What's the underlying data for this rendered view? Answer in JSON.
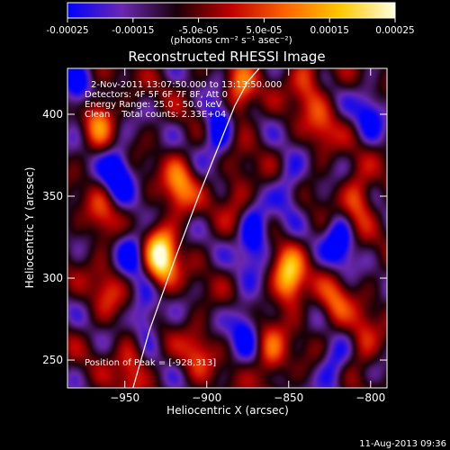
{
  "colors": {
    "background": "#000000",
    "foreground": "#ffffff",
    "colormap": [
      "#0000ff",
      "#6a28b0",
      "#1a0008",
      "#c00000",
      "#ff6400",
      "#ffc800",
      "#ffffe0"
    ]
  },
  "colorbar": {
    "tick_labels": [
      "-0.00025",
      "-0.00015",
      "-5.0e-05",
      "5.0e-05",
      "0.00015",
      "0.00025"
    ],
    "tick_values": [
      -0.00025,
      -0.00015,
      -5e-05,
      5e-05,
      0.00015,
      0.00025
    ],
    "unit_label": "(photons cm⁻² s⁻¹ asec⁻²)",
    "range": [
      -0.00025,
      0.00025
    ]
  },
  "chart_data": {
    "type": "heatmap",
    "title": "Reconstructed RHESSI Image",
    "xlabel": "Heliocentric X (arcsec)",
    "ylabel": "Heliocentric Y (arcsec)",
    "xlim": [
      -985,
      -790
    ],
    "ylim": [
      233,
      428
    ],
    "x_ticks": [
      -950,
      -900,
      -850,
      -800
    ],
    "x_tick_labels": [
      "−950",
      "−900",
      "−850",
      "−800"
    ],
    "y_ticks": [
      250,
      300,
      350,
      400
    ],
    "y_tick_labels": [
      "250",
      "300",
      "350",
      "400"
    ],
    "grid": false,
    "annotations": [
      "2-Nov-2011 13:07:50.000 to 13:13:50.000",
      "Detectors: 4F 5F 6F 7F 8F, Att 0",
      "Energy Range: 25.0 - 50.0 keV",
      "Clean    Total counts: 2.33E+04",
      "Position of Peak = [-928,313]"
    ],
    "peak_position": [
      -928,
      313
    ],
    "limb_line": {
      "x": [
        -945,
        -935,
        -920,
        -905,
        -893,
        -883,
        -875,
        -868
      ],
      "y": [
        233,
        268,
        310,
        350,
        380,
        405,
        420,
        428
      ]
    },
    "sources": [
      {
        "x": -928,
        "y": 313,
        "value": 0.00025
      },
      {
        "x": -850,
        "y": 300,
        "value": 0.0002
      },
      {
        "x": -917,
        "y": 356,
        "value": 0.00014
      },
      {
        "x": -966,
        "y": 397,
        "value": 0.00012
      },
      {
        "x": -880,
        "y": 413,
        "value": 0.00013
      },
      {
        "x": -839,
        "y": 421,
        "value": 0.00011
      },
      {
        "x": -808,
        "y": 348,
        "value": 0.00012
      },
      {
        "x": -822,
        "y": 285,
        "value": 0.0001
      },
      {
        "x": -946,
        "y": 248,
        "value": 0.0001
      },
      {
        "x": -906,
        "y": 256,
        "value": 8e-05
      },
      {
        "x": -861,
        "y": 253,
        "value": 0.00011
      },
      {
        "x": -805,
        "y": 262,
        "value": 8e-05
      },
      {
        "x": -964,
        "y": 338,
        "value": 8e-05
      },
      {
        "x": -882,
        "y": 353,
        "value": 7e-05
      },
      {
        "x": -961,
        "y": 293,
        "value": 7e-05
      },
      {
        "x": -830,
        "y": 392,
        "value": 8e-05
      }
    ],
    "minima": [
      {
        "x": -955,
        "y": 365,
        "value": -0.00015
      },
      {
        "x": -893,
        "y": 393,
        "value": -0.00014
      },
      {
        "x": -872,
        "y": 325,
        "value": -0.00015
      },
      {
        "x": -819,
        "y": 323,
        "value": -0.00013
      },
      {
        "x": -938,
        "y": 276,
        "value": -0.00011
      },
      {
        "x": -877,
        "y": 272,
        "value": -0.00011
      },
      {
        "x": -823,
        "y": 246,
        "value": -0.0001
      },
      {
        "x": -980,
        "y": 412,
        "value": -0.0001
      },
      {
        "x": -850,
        "y": 356,
        "value": -9e-05
      },
      {
        "x": -946,
        "y": 318,
        "value": -0.0001
      },
      {
        "x": -801,
        "y": 402,
        "value": -9e-05
      }
    ]
  },
  "footer": {
    "timestamp": "11-Aug-2013 09:36"
  }
}
